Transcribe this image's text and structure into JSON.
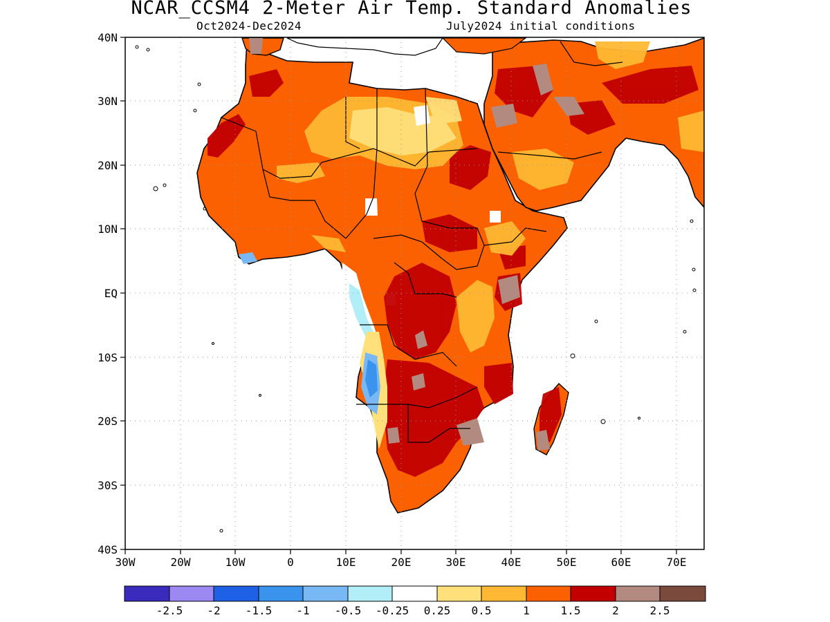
{
  "title": "NCAR_CCSM4 2-Meter Air Temp. Standard Anomalies",
  "subtitle_left": "Oct2024-Dec2024",
  "subtitle_right": "July2024 initial conditions",
  "axes": {
    "lat_ticks": [
      "40N",
      "30N",
      "20N",
      "10N",
      "EQ",
      "10S",
      "20S",
      "30S",
      "40S"
    ],
    "lon_ticks": [
      "30W",
      "20W",
      "10W",
      "0",
      "10E",
      "20E",
      "30E",
      "40E",
      "50E",
      "60E",
      "70E"
    ]
  },
  "colorbar": {
    "colors": [
      "#3b2bbd",
      "#9d89f2",
      "#1f61e6",
      "#3a94ee",
      "#78b8f5",
      "#b2eef8",
      "#ffffff",
      "#ffe07a",
      "#ffb833",
      "#fb6100",
      "#c20000",
      "#b38a80",
      "#7a4a3c"
    ],
    "labels": [
      "-2.5",
      "-2",
      "-1.5",
      "-1",
      "-0.5",
      "-0.25",
      "0.25",
      "0.5",
      "1",
      "1.5",
      "2",
      "2.5"
    ]
  },
  "colors": {
    "ocean": "#ffffff",
    "coast": "#000000",
    "grid": "#999999"
  }
}
